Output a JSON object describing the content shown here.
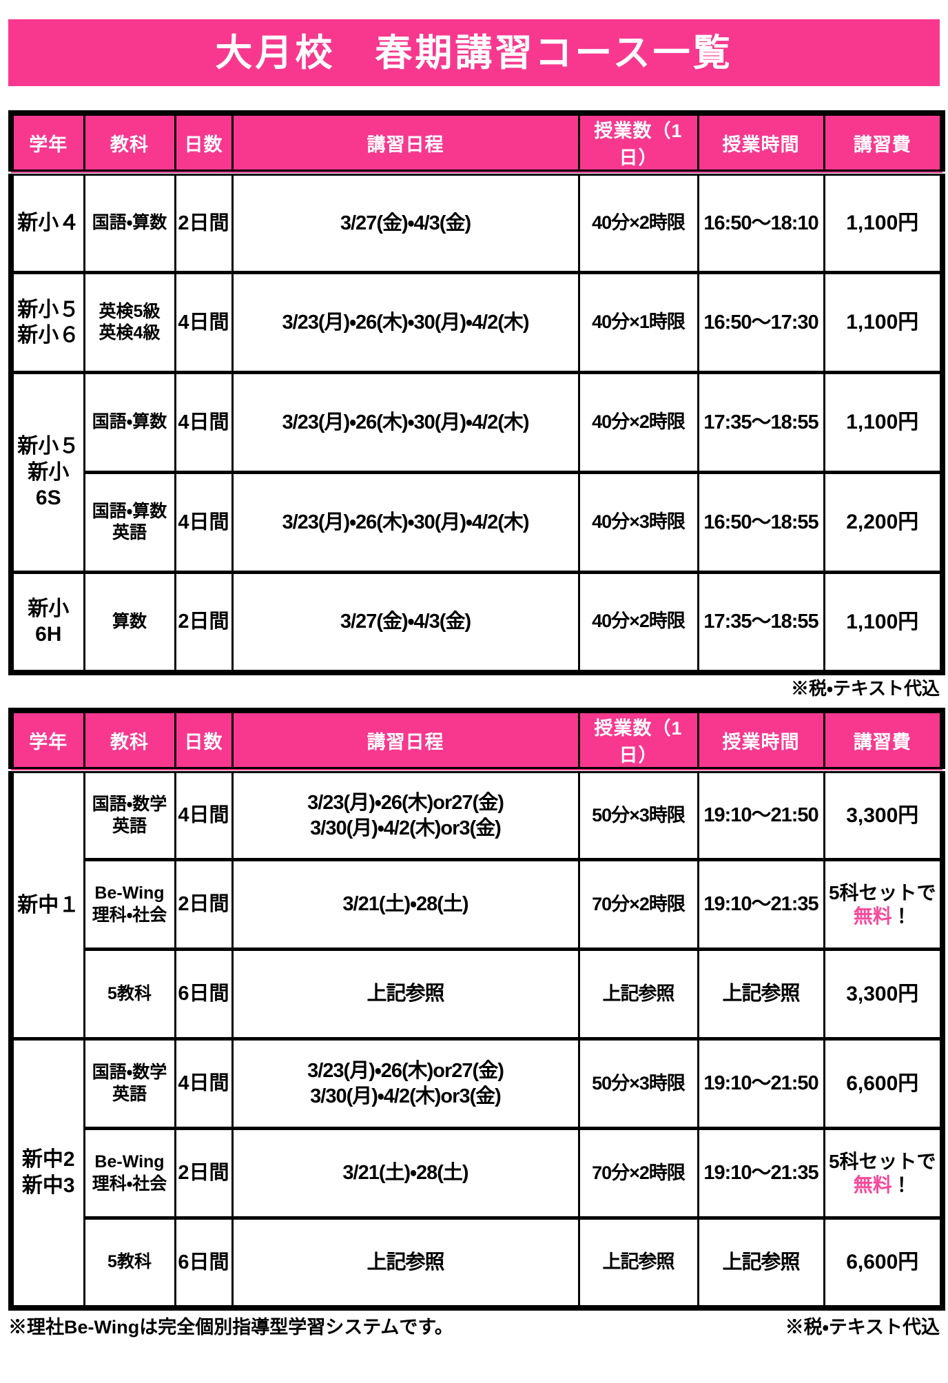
{
  "page": {
    "title": "大月校　春期講習コース一覧",
    "tax_note": "※税・テキスト代込",
    "bewing_note": "※理社Be-Wingは完全個別指導型学習システムです。"
  },
  "colors": {
    "accent_pink": "#F8388F",
    "free_text_pink": "#F8489A",
    "header_text": "#FFFFFF",
    "border": "#000000"
  },
  "columns": [
    "学年",
    "教科",
    "日数",
    "講習日程",
    "授業数（1日）",
    "授業時間",
    "講習費"
  ],
  "table1": {
    "groups": [
      {
        "grade": "新小４",
        "rows": [
          {
            "subject": "国語・算数",
            "days": "2日間",
            "schedule": "3/27(金)・4/3(金)",
            "lessons": "40分×2時限",
            "time": "16:50～18:10",
            "fee": "1,100円"
          }
        ]
      },
      {
        "grade": "新小５\n新小６",
        "rows": [
          {
            "subject": "英検5級\n英検4級",
            "days": "4日間",
            "schedule": "3/23(月)・26(木)・30(月)・4/2(木)",
            "lessons": "40分×1時限",
            "time": "16:50～17:30",
            "fee": "1,100円"
          }
        ]
      },
      {
        "grade": "新小５\n新小6S",
        "rows": [
          {
            "subject": "国語・算数",
            "days": "4日間",
            "schedule": "3/23(月)・26(木)・30(月)・4/2(木)",
            "lessons": "40分×2時限",
            "time": "17:35～18:55",
            "fee": "1,100円"
          },
          {
            "subject": "国語・算数\n英語",
            "days": "4日間",
            "schedule": "3/23(月)・26(木)・30(月)・4/2(木)",
            "lessons": "40分×3時限",
            "time": "16:50～18:55",
            "fee": "2,200円"
          }
        ]
      },
      {
        "grade": "新小6H",
        "rows": [
          {
            "subject": "算数",
            "days": "2日間",
            "schedule": "3/27(金)・4/3(金)",
            "lessons": "40分×2時限",
            "time": "17:35～18:55",
            "fee": "1,100円"
          }
        ]
      }
    ]
  },
  "table2": {
    "groups": [
      {
        "grade": "新中１",
        "rows": [
          {
            "subject": "国語・数学\n英語",
            "days": "4日間",
            "schedule": "3/23(月)・26(木)or27(金)\n3/30(月)・4/2(木)or3(金)",
            "lessons": "50分×3時限",
            "time": "19:10～21:50",
            "fee": "3,300円"
          },
          {
            "subject": "Be-Wing\n理科・社会",
            "days": "2日間",
            "schedule": "3/21(土)・28(土)",
            "lessons": "70分×2時限",
            "time": "19:10～21:35",
            "fee_set": {
              "prefix": "5科セットで",
              "free": "無料",
              "suffix": "！"
            }
          },
          {
            "subject": "5教科",
            "days": "6日間",
            "schedule": "上記参照",
            "lessons": "上記参照",
            "time": "上記参照",
            "fee": "3,300円"
          }
        ]
      },
      {
        "grade": "新中2\n新中3",
        "rows": [
          {
            "subject": "国語・数学\n英語",
            "days": "4日間",
            "schedule": "3/23(月)・26(木)or27(金)\n3/30(月)・4/2(木)or3(金)",
            "lessons": "50分×3時限",
            "time": "19:10～21:50",
            "fee": "6,600円"
          },
          {
            "subject": "Be-Wing\n理科・社会",
            "days": "2日間",
            "schedule": "3/21(土)・28(土)",
            "lessons": "70分×2時限",
            "time": "19:10～21:35",
            "fee_set": {
              "prefix": "5科セットで",
              "free": "無料",
              "suffix": "！"
            }
          },
          {
            "subject": "5教科",
            "days": "6日間",
            "schedule": "上記参照",
            "lessons": "上記参照",
            "time": "上記参照",
            "fee": "6,600円"
          }
        ]
      }
    ]
  }
}
